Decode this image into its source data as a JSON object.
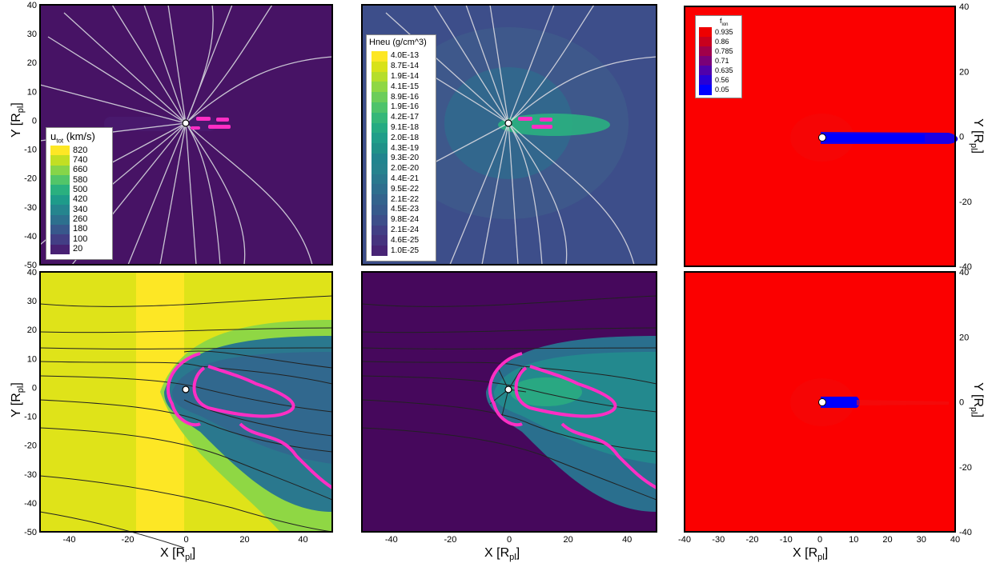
{
  "axes": {
    "x_label": "X [R",
    "y_label": "Y [R",
    "unit_sub": "pl",
    "unit_close": "]",
    "x_ticks": [
      -40,
      -20,
      0,
      20,
      40
    ],
    "y_ticks": [
      40,
      30,
      20,
      10,
      0,
      -10,
      -20,
      -30,
      -40,
      -50
    ],
    "right_x_ticks": [
      -40,
      -30,
      -20,
      -10,
      0,
      10,
      20,
      30,
      40
    ],
    "right_y_ticks": [
      40,
      20,
      0,
      -20,
      -40
    ]
  },
  "legends": {
    "utot": {
      "title_main": "u",
      "title_sub": "tot",
      "title_rest": " (km/s)",
      "labels": [
        "820",
        "740",
        "660",
        "580",
        "500",
        "420",
        "340",
        "260",
        "180",
        "100",
        "20"
      ],
      "colors": [
        "#fde725",
        "#c2df23",
        "#86d549",
        "#52c569",
        "#2ab07f",
        "#1e9b8a",
        "#25858e",
        "#2d708e",
        "#38588c",
        "#433e85",
        "#482173"
      ]
    },
    "hneu": {
      "title": "Hneu (g/cm^3)",
      "labels": [
        "4.0E-13",
        "8.7E-14",
        "1.9E-14",
        "4.1E-15",
        "8.9E-16",
        "1.9E-16",
        "4.2E-17",
        "9.1E-18",
        "2.0E-18",
        "4.3E-19",
        "9.3E-20",
        "2.0E-20",
        "4.4E-21",
        "9.5E-22",
        "2.1E-22",
        "4.5E-23",
        "9.8E-24",
        "2.1E-24",
        "4.6E-25",
        "1.0E-25"
      ],
      "colors": [
        "#fde725",
        "#d8e219",
        "#b5de2b",
        "#8fd744",
        "#6ccd5a",
        "#4ec36b",
        "#35b779",
        "#25ab82",
        "#1f9e89",
        "#1f9188",
        "#21848e",
        "#26828e",
        "#2a788e",
        "#2e6e8e",
        "#33638d",
        "#375a8c",
        "#3d4e8a",
        "#423f85",
        "#46337e",
        "#482475"
      ]
    },
    "fion": {
      "title_main": "f",
      "title_sub": "ion",
      "labels": [
        "0.935",
        "0.86",
        "0.785",
        "0.71",
        "0.635",
        "0.56",
        "0.05"
      ],
      "colors": [
        "#ee0000",
        "#c8001e",
        "#a0004a",
        "#7a0078",
        "#5000aa",
        "#2800d6",
        "#0000ff"
      ]
    }
  },
  "chart_data": [
    {
      "type": "heatmap",
      "panel": "top-left",
      "quantity": "u_tot (km/s)",
      "xlim": [
        -50,
        50
      ],
      "ylim": [
        -50,
        40
      ],
      "streamlines": "white",
      "legend": "utot"
    },
    {
      "type": "heatmap",
      "panel": "top-middle",
      "quantity": "Hneu (g/cm^3)",
      "xlim": [
        -50,
        50
      ],
      "ylim": [
        -50,
        40
      ],
      "streamlines": "white",
      "legend": "hneu"
    },
    {
      "type": "heatmap",
      "panel": "top-right",
      "quantity": "f_ion",
      "xlim": [
        -40,
        40
      ],
      "ylim": [
        -40,
        40
      ],
      "legend": "fion"
    },
    {
      "type": "heatmap",
      "panel": "bottom-left",
      "quantity": "u_tot (km/s)",
      "xlim": [
        -50,
        50
      ],
      "ylim": [
        -50,
        40
      ],
      "streamlines": "black"
    },
    {
      "type": "heatmap",
      "panel": "bottom-middle",
      "quantity": "Hneu (g/cm^3)",
      "xlim": [
        -50,
        50
      ],
      "ylim": [
        -50,
        40
      ],
      "streamlines": "black"
    },
    {
      "type": "heatmap",
      "panel": "bottom-right",
      "quantity": "f_ion",
      "xlim": [
        -40,
        40
      ],
      "ylim": [
        -40,
        40
      ]
    }
  ]
}
